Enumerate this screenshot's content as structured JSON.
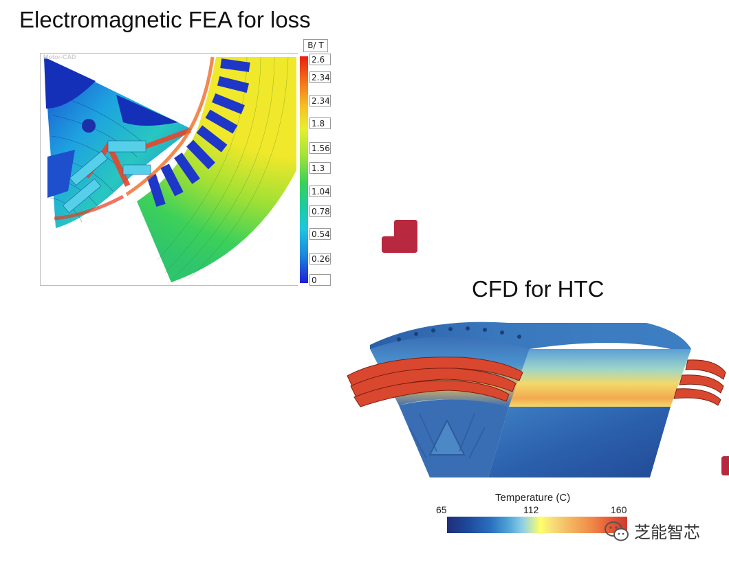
{
  "titles": {
    "fea": "Electromagnetic FEA for loss",
    "cfd": "CFD for HTC"
  },
  "fea": {
    "watermark": "Motor-CAD",
    "unit": "B/ T",
    "ticks": [
      "2.6",
      "2.34",
      "2.34",
      "1.8",
      "1.56",
      "1.3",
      "1.04",
      "0.78",
      "0.54",
      "0.26",
      "0"
    ]
  },
  "cfd": {
    "legend_title": "Temperature (C)",
    "min": "65",
    "mid": "112",
    "max": "160"
  },
  "brand": {
    "name": "芝能智芯",
    "icon": "wechat-icon"
  },
  "colors": {
    "marker": "#b8283e"
  }
}
